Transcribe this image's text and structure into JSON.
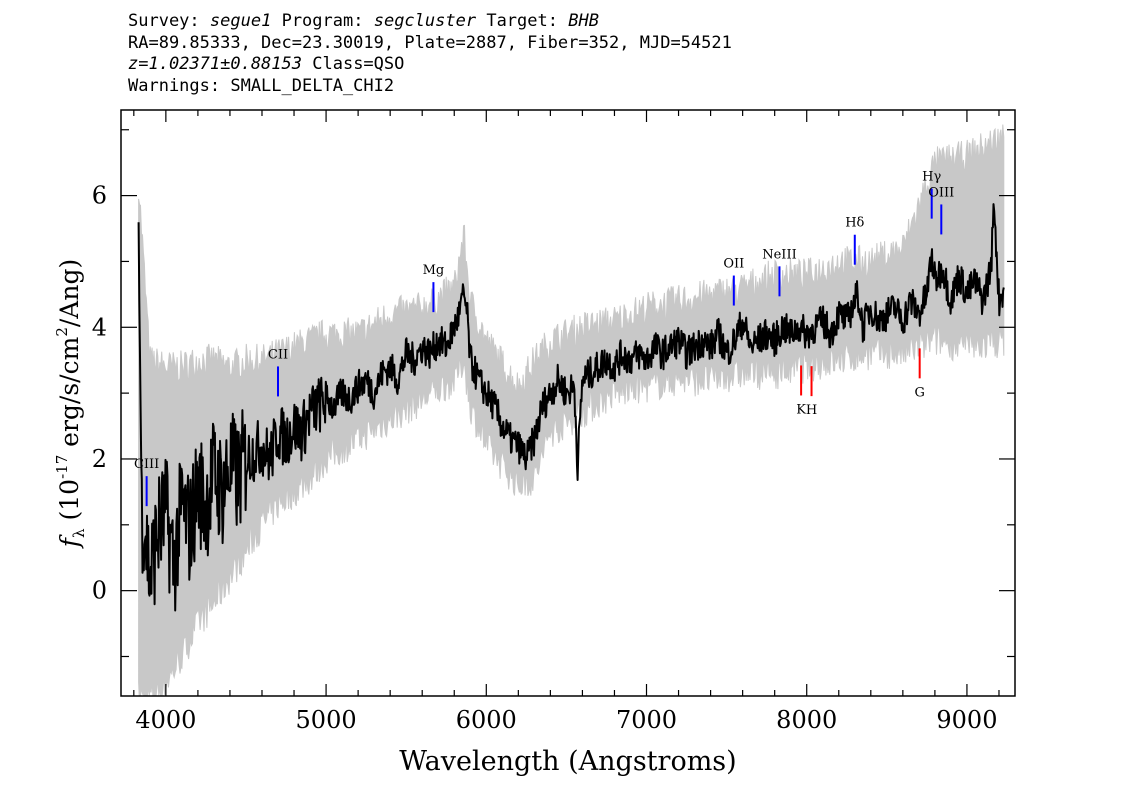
{
  "header": {
    "survey_label": "Survey:",
    "survey": "segue1",
    "program_label": "Program:",
    "program": "segcluster",
    "target_label": "Target:",
    "target": "BHB",
    "line2": "RA=89.85333, Dec=23.30019, Plate=2887, Fiber=352, MJD=54521",
    "z": "z=1.02371±0.88153",
    "class": "Class=QSO",
    "warnings": "Warnings: SMALL_DELTA_CHI2"
  },
  "chart_data": {
    "type": "line",
    "xlabel": "Wavelength (Angstroms)",
    "ylabel": "f_λ (10^-17 erg/s/cm^2/Ang)",
    "xlim": [
      3720,
      9300
    ],
    "ylim": [
      -1.6,
      7.3
    ],
    "xticks": [
      4000,
      5000,
      6000,
      7000,
      8000,
      9000
    ],
    "yticks": [
      0,
      2,
      4,
      6
    ],
    "grid": false,
    "series": [
      {
        "role": "flux",
        "color": "#000000",
        "x": [
          3830,
          3850,
          3870,
          3900,
          3950,
          4000,
          4050,
          4100,
          4150,
          4200,
          4250,
          4300,
          4350,
          4400,
          4450,
          4500,
          4550,
          4600,
          4650,
          4700,
          4750,
          4800,
          4850,
          4900,
          4950,
          5000,
          5050,
          5100,
          5150,
          5200,
          5250,
          5300,
          5350,
          5400,
          5450,
          5500,
          5550,
          5600,
          5650,
          5700,
          5750,
          5800,
          5830,
          5860,
          5880,
          5900,
          5950,
          6000,
          6050,
          6100,
          6150,
          6200,
          6250,
          6300,
          6350,
          6400,
          6450,
          6500,
          6550,
          6570,
          6600,
          6650,
          6700,
          6750,
          6800,
          6850,
          6900,
          6950,
          7000,
          7050,
          7100,
          7150,
          7200,
          7250,
          7300,
          7350,
          7400,
          7450,
          7500,
          7550,
          7600,
          7650,
          7700,
          7750,
          7800,
          7850,
          7900,
          7950,
          8000,
          8050,
          8100,
          8150,
          8200,
          8250,
          8300,
          8320,
          8350,
          8400,
          8450,
          8500,
          8550,
          8600,
          8650,
          8700,
          8750,
          8780,
          8800,
          8850,
          8900,
          8950,
          9000,
          9050,
          9100,
          9150,
          9170,
          9200,
          9230
        ],
        "y": [
          5.4,
          1.2,
          1.0,
          0.2,
          0.9,
          1.2,
          0.4,
          1.3,
          0.9,
          1.6,
          1.3,
          1.8,
          1.5,
          1.9,
          1.7,
          2.0,
          2.1,
          2.2,
          2.0,
          2.4,
          2.3,
          2.5,
          2.4,
          2.7,
          2.8,
          2.9,
          2.8,
          3.0,
          2.9,
          3.1,
          3.2,
          3.0,
          3.3,
          3.4,
          3.2,
          3.6,
          3.5,
          3.7,
          3.6,
          3.8,
          3.7,
          4.0,
          4.2,
          4.5,
          4.2,
          3.5,
          3.2,
          3.0,
          2.8,
          2.5,
          2.3,
          2.2,
          2.0,
          2.3,
          2.8,
          3.0,
          3.2,
          3.0,
          3.1,
          1.9,
          3.2,
          3.3,
          3.4,
          3.5,
          3.4,
          3.6,
          3.5,
          3.6,
          3.5,
          3.7,
          3.6,
          3.7,
          3.8,
          3.6,
          3.7,
          3.8,
          3.7,
          3.9,
          3.6,
          3.8,
          4.1,
          3.7,
          3.8,
          3.9,
          3.8,
          4.0,
          3.9,
          4.0,
          3.9,
          4.0,
          4.1,
          3.9,
          4.2,
          4.1,
          4.4,
          4.5,
          4.0,
          4.3,
          4.1,
          4.2,
          4.3,
          4.1,
          4.4,
          4.2,
          4.5,
          5.1,
          4.7,
          4.9,
          4.4,
          4.8,
          4.5,
          4.7,
          4.4,
          4.9,
          5.9,
          4.4,
          4.6
        ]
      },
      {
        "role": "error band",
        "color": "#c8c8c8",
        "x": [
          3830,
          3900,
          4000,
          4100,
          4200,
          4300,
          4400,
          4500,
          4600,
          4700,
          4800,
          4900,
          5000,
          5200,
          5400,
          5600,
          5800,
          5860,
          5900,
          6000,
          6200,
          6300,
          6400,
          6600,
          6800,
          7000,
          7200,
          7400,
          7600,
          7800,
          8000,
          8200,
          8400,
          8600,
          8800,
          9000,
          9230
        ],
        "y_low": [
          -1.6,
          -1.6,
          -1.4,
          -1.0,
          -0.5,
          -0.2,
          0.2,
          0.6,
          1.0,
          1.3,
          1.5,
          1.7,
          2.0,
          2.3,
          2.6,
          2.9,
          3.2,
          3.5,
          2.8,
          2.2,
          1.6,
          1.7,
          2.4,
          2.7,
          3.0,
          3.1,
          3.2,
          3.2,
          3.3,
          3.3,
          3.4,
          3.5,
          3.6,
          3.6,
          3.8,
          3.7,
          3.8
        ],
        "y_high": [
          6.2,
          3.5,
          3.4,
          3.4,
          3.5,
          3.5,
          3.4,
          3.5,
          3.5,
          3.6,
          3.7,
          3.8,
          3.9,
          3.9,
          4.2,
          4.3,
          4.6,
          5.4,
          4.4,
          3.8,
          3.1,
          3.5,
          3.8,
          4.0,
          4.1,
          4.3,
          4.4,
          4.5,
          4.6,
          4.8,
          4.8,
          5.0,
          5.0,
          5.2,
          6.5,
          6.6,
          6.9
        ]
      }
    ],
    "annotations": [
      {
        "label": "CIII",
        "x": 3880,
        "color": "#0000ff",
        "position": "above"
      },
      {
        "label": "CII",
        "x": 4700,
        "color": "#0000ff",
        "position": "above"
      },
      {
        "label": "Mg",
        "x": 5670,
        "color": "#0000ff",
        "position": "above"
      },
      {
        "label": "OII",
        "x": 7545,
        "color": "#0000ff",
        "position": "above"
      },
      {
        "label": "NeIII",
        "x": 7830,
        "color": "#0000ff",
        "position": "above"
      },
      {
        "label": "Hδ",
        "x": 8300,
        "color": "#0000ff",
        "position": "above"
      },
      {
        "label": "Hγ",
        "x": 8780,
        "color": "#0000ff",
        "position": "above"
      },
      {
        "label": "OIII",
        "x": 8840,
        "color": "#0000ff",
        "position": "above"
      },
      {
        "label": "K",
        "x": 7965,
        "color": "#ff0000",
        "position": "below"
      },
      {
        "label": "H",
        "x": 8030,
        "color": "#ff0000",
        "position": "below"
      },
      {
        "label": "G",
        "x": 8705,
        "color": "#ff0000",
        "position": "below"
      }
    ]
  }
}
